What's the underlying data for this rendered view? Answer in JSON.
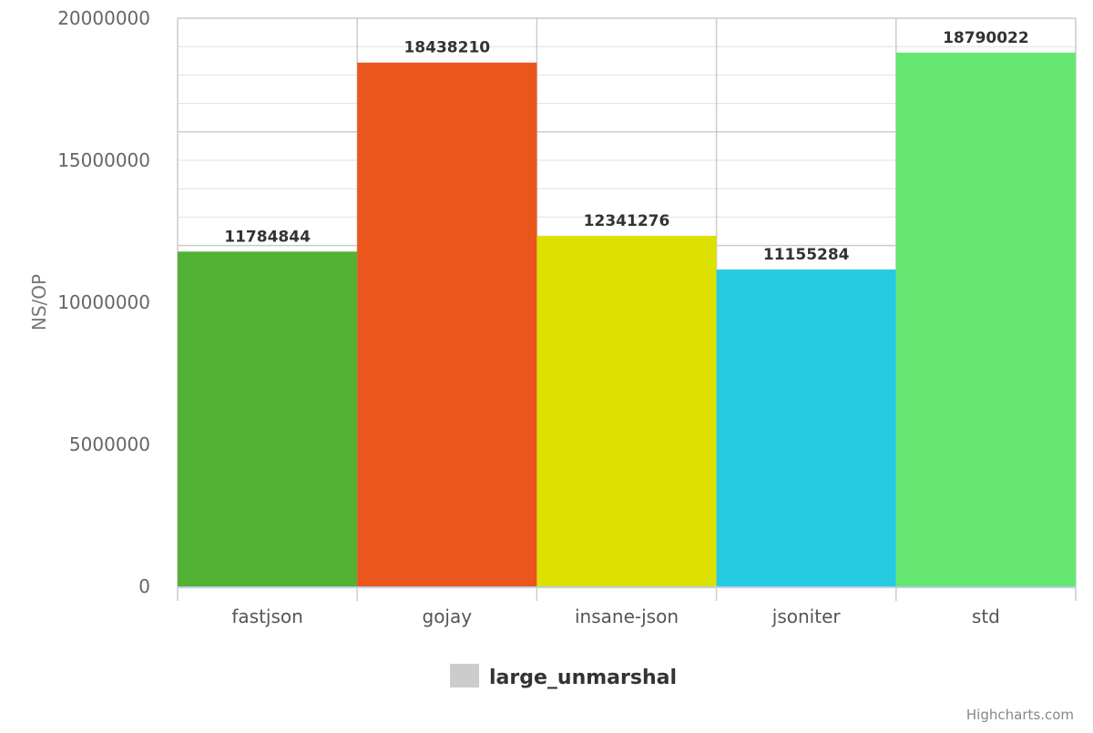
{
  "chart_data": {
    "type": "bar",
    "categories": [
      "fastjson",
      "gojay",
      "insane-json",
      "jsoniter",
      "std"
    ],
    "series": [
      {
        "name": "large_unmarshal",
        "values": [
          11784844,
          18438210,
          12341276,
          11155284,
          18790022
        ],
        "data_labels": [
          "11784844",
          "18438210",
          "12341276",
          "11155284",
          "18790022"
        ],
        "colors": [
          "#52b234",
          "#ea561c",
          "#dde000",
          "#25cae3",
          "#65e671"
        ]
      }
    ],
    "ylabel": "NS/OP",
    "xlabel": "",
    "ylim": [
      0,
      20000000
    ],
    "yticks": [
      "0",
      "5000000",
      "10000000",
      "15000000",
      "20000000"
    ],
    "grid": true,
    "legend": {
      "position": "bottom-center",
      "label": "large_unmarshal",
      "swatch_color": "#cccccc"
    },
    "credits": "Highcharts.com"
  }
}
